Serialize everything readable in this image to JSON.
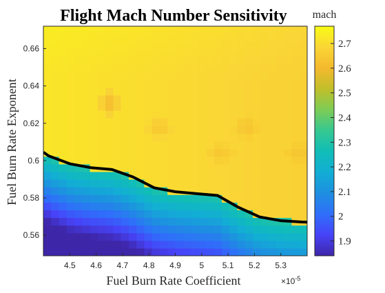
{
  "chart_data": {
    "type": "heatmap",
    "title": "Flight Mach Number Sensitivity",
    "xlabel": "Fuel Burn Rate Coefficient",
    "ylabel": "Fuel Burn Rate Exponent",
    "x_exponent_label": "×10",
    "x_exponent_power": "-5",
    "colorbar_label": "mach",
    "xlim": [
      4.4,
      5.4
    ],
    "ylim": [
      0.549,
      0.672
    ],
    "x_ticks": [
      "4.5",
      "4.6",
      "4.7",
      "4.8",
      "4.9",
      "5",
      "5.1",
      "5.2",
      "5.3"
    ],
    "y_ticks": [
      "0.56",
      "0.58",
      "0.6",
      "0.62",
      "0.64",
      "0.66"
    ],
    "color_range": [
      1.84,
      2.77
    ],
    "colorbar_ticks": [
      "1.9",
      "2",
      "2.1",
      "2.2",
      "2.3",
      "2.4",
      "2.5",
      "2.6",
      "2.7"
    ],
    "colormap": [
      "#3e26a8",
      "#4743f8",
      "#2f6ffa",
      "#1e8fe0",
      "#12aed4",
      "#11bdb7",
      "#36c891",
      "#7dcc55",
      "#c1bf2a",
      "#f4b92e",
      "#fad636",
      "#f9fb14"
    ],
    "boundary_line": {
      "color": "#000000",
      "x": [
        4.4,
        4.42,
        4.5,
        4.58,
        4.66,
        4.74,
        4.82,
        4.9,
        4.98,
        5.06,
        5.14,
        5.22,
        5.3,
        5.38,
        5.4
      ],
      "y": [
        0.6045,
        0.6025,
        0.5983,
        0.5962,
        0.5952,
        0.5912,
        0.5854,
        0.5833,
        0.5823,
        0.5813,
        0.5749,
        0.5698,
        0.5678,
        0.5671,
        0.567
      ]
    },
    "grid": false
  }
}
